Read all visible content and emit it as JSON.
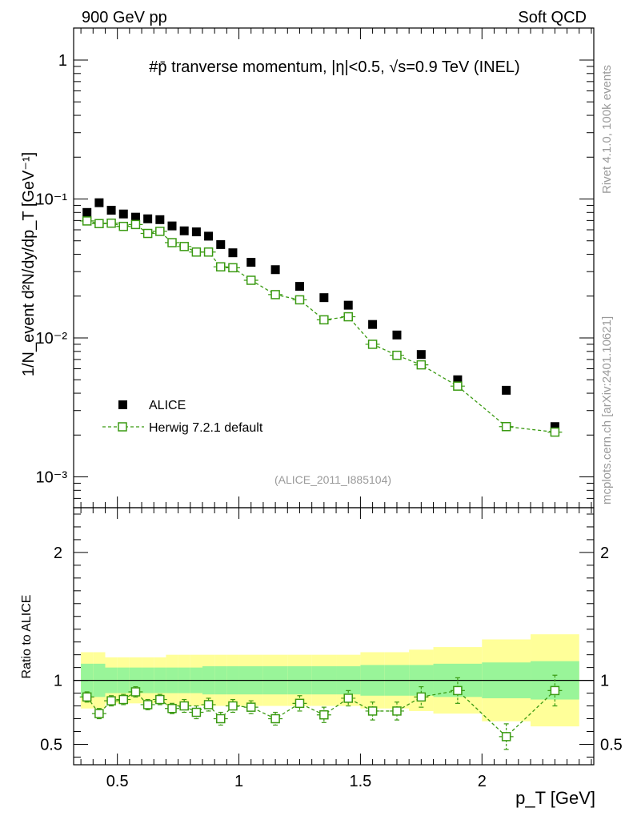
{
  "header": {
    "left": "900 GeV pp",
    "right": "Soft QCD"
  },
  "side_labels": {
    "rivet": "Rivet 4.1.0,  100k events",
    "mcplots": "mcplots.cern.ch [arXiv:2401.10621]"
  },
  "chart_data": {
    "type": "scatter",
    "title": "#p̄ tranverse momentum, |η|<0.5, √s=0.9 TeV (INEL)",
    "analysis_tag": "(ALICE_2011_I885104)",
    "xlabel": "p_T [GeV]",
    "ylabel": "1/N_event d²N/dy/dp_T [GeV⁻¹]",
    "ratio_ylabel": "Ratio to ALICE",
    "xlim": [
      0.32,
      2.46
    ],
    "ylim": [
      0.0006,
      1.7
    ],
    "yscale": "log",
    "ratio_ylim": [
      0.34,
      2.35
    ],
    "x_ticks": [
      "0.5",
      "1",
      "1.5",
      "2"
    ],
    "x_tick_values": [
      0.5,
      1.0,
      1.5,
      2.0
    ],
    "y_ticks": [
      "1",
      "10⁻¹",
      "10⁻²",
      "10⁻³"
    ],
    "y_tick_values": [
      1,
      0.1,
      0.01,
      0.001
    ],
    "ratio_ticks": [
      "2",
      "1",
      "0.5"
    ],
    "ratio_tick_values": [
      2,
      1,
      0.5
    ],
    "x": [
      0.375,
      0.425,
      0.475,
      0.525,
      0.575,
      0.625,
      0.675,
      0.725,
      0.775,
      0.825,
      0.875,
      0.925,
      0.975,
      1.05,
      1.15,
      1.25,
      1.35,
      1.45,
      1.55,
      1.65,
      1.75,
      1.9,
      2.1,
      2.3
    ],
    "x_edges": [
      0.35,
      0.4,
      0.45,
      0.5,
      0.55,
      0.6,
      0.65,
      0.7,
      0.75,
      0.8,
      0.85,
      0.9,
      0.95,
      1.0,
      1.1,
      1.2,
      1.3,
      1.4,
      1.5,
      1.6,
      1.7,
      1.8,
      2.0,
      2.2,
      2.4
    ],
    "series": [
      {
        "name": "ALICE",
        "values": [
          0.08,
          0.094,
          0.083,
          0.078,
          0.074,
          0.072,
          0.071,
          0.064,
          0.059,
          0.058,
          0.054,
          0.047,
          0.041,
          0.035,
          0.031,
          0.0235,
          0.0195,
          0.0172,
          0.0125,
          0.0105,
          0.0076,
          0.005,
          0.0042,
          0.0023
        ],
        "band_inner": [
          0.13,
          0.13,
          0.1,
          0.1,
          0.1,
          0.1,
          0.1,
          0.1,
          0.1,
          0.1,
          0.11,
          0.11,
          0.11,
          0.11,
          0.11,
          0.11,
          0.11,
          0.11,
          0.12,
          0.12,
          0.12,
          0.13,
          0.14,
          0.15
        ],
        "band_outer": [
          0.22,
          0.22,
          0.18,
          0.18,
          0.18,
          0.18,
          0.18,
          0.2,
          0.2,
          0.2,
          0.2,
          0.2,
          0.2,
          0.2,
          0.2,
          0.2,
          0.2,
          0.2,
          0.22,
          0.22,
          0.24,
          0.26,
          0.32,
          0.36
        ],
        "color": "#000000"
      },
      {
        "name": "Herwig 7.2.1 default",
        "values": [
          0.0695,
          0.0665,
          0.067,
          0.0635,
          0.0655,
          0.0565,
          0.0585,
          0.0485,
          0.0455,
          0.0415,
          0.0415,
          0.0325,
          0.032,
          0.026,
          0.0205,
          0.0188,
          0.0135,
          0.0142,
          0.009,
          0.0075,
          0.0064,
          0.0045,
          0.0023,
          0.0021
        ],
        "ratio": [
          0.87,
          0.74,
          0.84,
          0.85,
          0.91,
          0.81,
          0.85,
          0.78,
          0.8,
          0.75,
          0.81,
          0.7,
          0.8,
          0.79,
          0.7,
          0.82,
          0.73,
          0.86,
          0.76,
          0.76,
          0.87,
          0.92,
          0.56,
          0.92
        ],
        "ratio_err": [
          0.04,
          0.04,
          0.04,
          0.04,
          0.04,
          0.04,
          0.04,
          0.04,
          0.05,
          0.05,
          0.05,
          0.05,
          0.05,
          0.05,
          0.05,
          0.06,
          0.06,
          0.06,
          0.07,
          0.07,
          0.08,
          0.1,
          0.1,
          0.12
        ],
        "color": "#3a9a12",
        "marker": "open-square",
        "line": "dashed"
      }
    ],
    "legend": {
      "placement": "bottom-left",
      "entries": [
        "ALICE",
        "Herwig 7.2.1 default"
      ]
    }
  },
  "colors": {
    "band_inner": "#99f599",
    "band_outer": "#ffff99",
    "mc": "#3a9a12",
    "data": "#000000",
    "side_text": "#9a9a9a",
    "tag_text": "#9a9a9a"
  }
}
